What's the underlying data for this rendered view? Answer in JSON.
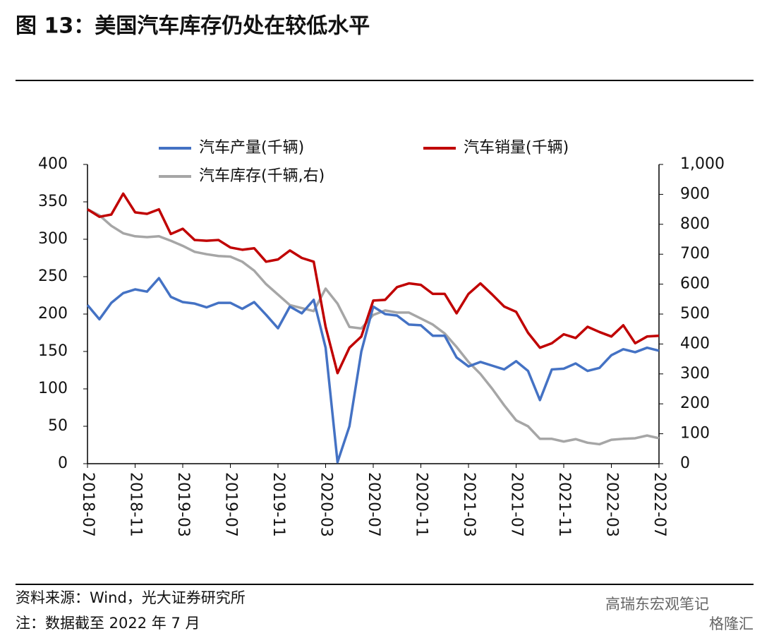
{
  "chart_data": {
    "type": "line",
    "title": "图 13：美国汽车库存仍处在较低水平",
    "source": "资料来源：Wind，光大证券研究所",
    "note": "注：数据截至 2022 年 7 月",
    "watermarks": [
      "高瑞东宏观笔记",
      "格隆汇"
    ],
    "categories": [
      "2018-07",
      null,
      null,
      null,
      "2018-11",
      null,
      null,
      null,
      "2019-03",
      null,
      null,
      null,
      "2019-07",
      null,
      null,
      null,
      "2019-11",
      null,
      null,
      null,
      "2020-03",
      null,
      null,
      null,
      "2020-07",
      null,
      null,
      null,
      "2020-11",
      null,
      null,
      null,
      "2021-03",
      null,
      null,
      null,
      "2021-07",
      null,
      null,
      null,
      "2021-11",
      null,
      null,
      null,
      "2022-03",
      null,
      null,
      null,
      "2022-07"
    ],
    "series": [
      {
        "name": "汽车产量(千辆)",
        "color": "#4472c4",
        "values": [
          212,
          193,
          215,
          228,
          233,
          230,
          248,
          223,
          216,
          214,
          209,
          215,
          215,
          207,
          216,
          199,
          181,
          210,
          201,
          219,
          155,
          2,
          50,
          150,
          210,
          200,
          198,
          186,
          185,
          171,
          171,
          142,
          130,
          136,
          131,
          126,
          137,
          124,
          85,
          126,
          127,
          134,
          124,
          128,
          145,
          153,
          149,
          155,
          151
        ]
      },
      {
        "name": "汽车销量(千辆)",
        "color": "#c00000",
        "values": [
          340,
          330,
          333,
          361,
          336,
          334,
          340,
          307,
          314,
          299,
          298,
          299,
          289,
          286,
          288,
          270,
          273,
          285,
          275,
          270,
          183,
          121,
          155,
          170,
          218,
          219,
          236,
          241,
          239,
          227,
          227,
          201,
          227,
          241,
          226,
          210,
          203,
          175,
          155,
          161,
          173,
          168,
          183,
          176,
          170,
          185,
          161,
          170,
          171
        ]
      },
      {
        "name": "汽车库存(千辆,右)",
        "color": "#a6a6a6",
        "axis": "y2",
        "values": [
          850,
          830,
          795,
          770,
          760,
          757,
          760,
          745,
          728,
          708,
          700,
          694,
          692,
          675,
          645,
          600,
          565,
          530,
          520,
          510,
          585,
          535,
          457,
          452,
          497,
          512,
          505,
          505,
          485,
          465,
          435,
          390,
          340,
          300,
          250,
          195,
          145,
          125,
          83,
          83,
          74,
          82,
          70,
          65,
          80,
          83,
          85,
          94,
          85
        ]
      }
    ],
    "ylim": [
      0,
      400
    ],
    "yticks": [
      0,
      50,
      100,
      150,
      200,
      250,
      300,
      350,
      400
    ],
    "y2lim": [
      0,
      1000
    ],
    "y2ticks": [
      0,
      100,
      200,
      300,
      400,
      500,
      600,
      700,
      800,
      900,
      {
        "value": 1000,
        "label": "1,000"
      }
    ],
    "legend": "top",
    "grid": false
  }
}
